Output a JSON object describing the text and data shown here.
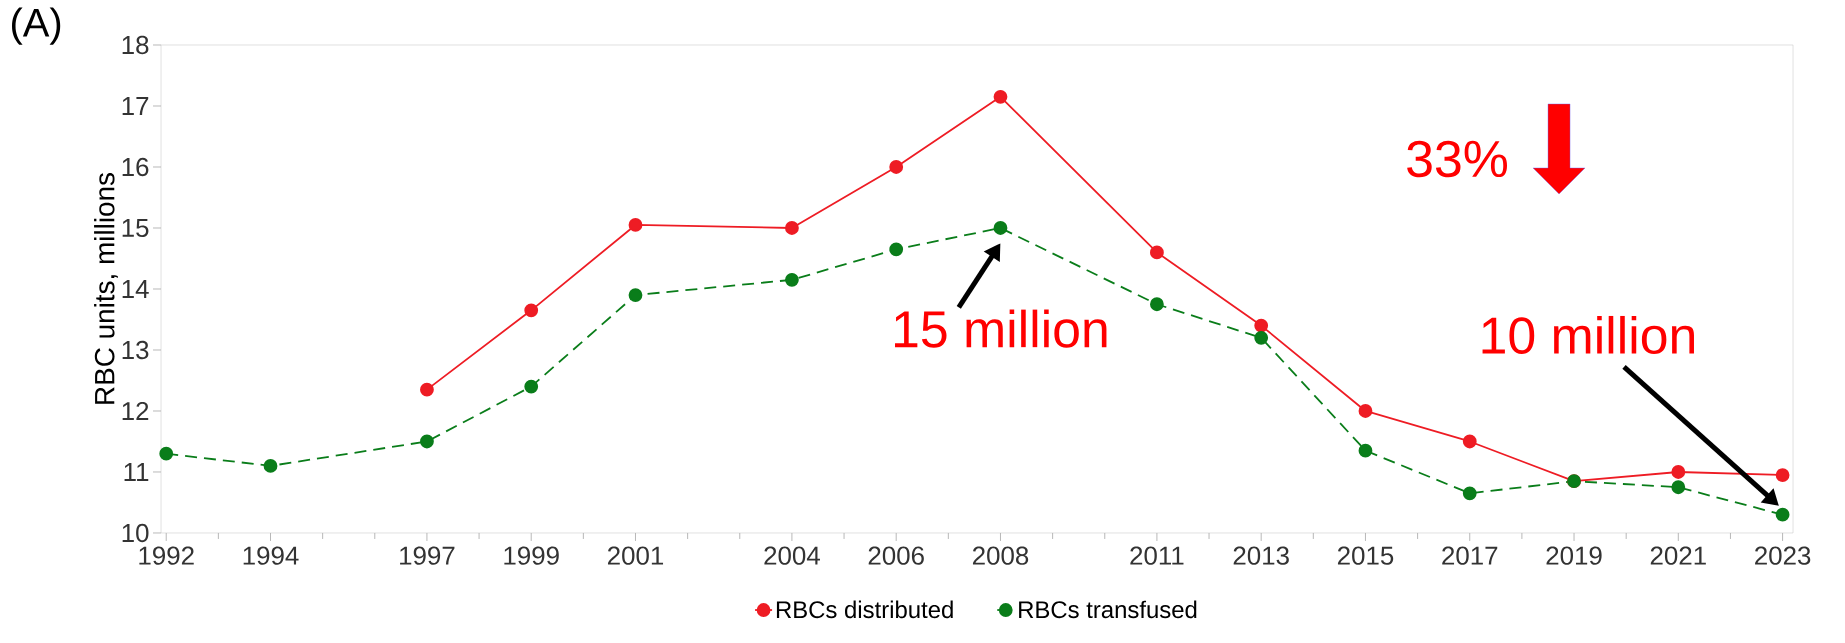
{
  "chart_data": {
    "type": "line",
    "ylabel": "RBC units, millions",
    "x": [
      1992,
      1994,
      1997,
      1999,
      2001,
      2004,
      2006,
      2008,
      2011,
      2013,
      2015,
      2017,
      2019,
      2021,
      2023
    ],
    "series": [
      {
        "name": "RBCs distributed",
        "color": "#ee1c24",
        "line_style": "solid",
        "values": [
          null,
          null,
          12.35,
          13.65,
          15.05,
          15.0,
          16.0,
          17.15,
          14.6,
          13.4,
          12.0,
          11.5,
          10.85,
          11.0,
          10.95
        ]
      },
      {
        "name": "RBCs transfused",
        "color": "#0a7d1a",
        "line_style": "dashed",
        "values": [
          11.3,
          11.1,
          11.5,
          12.4,
          13.9,
          14.15,
          14.65,
          15.0,
          13.75,
          13.2,
          11.35,
          10.65,
          10.85,
          10.75,
          10.3
        ]
      }
    ],
    "xlim": [
      1991.9,
      2023.2
    ],
    "ylim": [
      10,
      18
    ],
    "xticks": [
      1992,
      1994,
      1997,
      1999,
      2001,
      2004,
      2006,
      2008,
      2011,
      2013,
      2015,
      2017,
      2019,
      2021,
      2023
    ],
    "yticks": [
      10,
      11,
      12,
      13,
      14,
      15,
      16,
      17,
      18
    ],
    "marker": "circle",
    "legend": "bottom",
    "grid": false,
    "annotations": [
      "(A)",
      "33%",
      {
        "text": "15 million",
        "x": 2008,
        "y": 15
      },
      "10 million"
    ]
  }
}
